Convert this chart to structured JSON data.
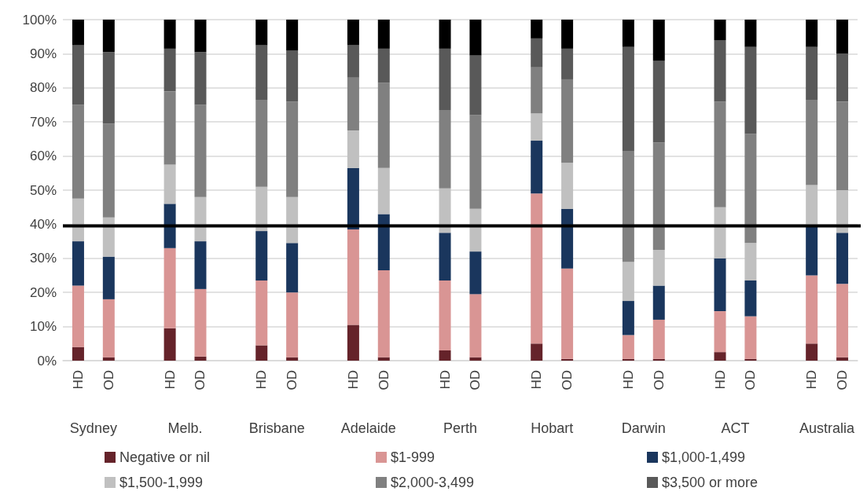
{
  "chart_data": {
    "type": "bar",
    "stacked": true,
    "categories": [
      "HD",
      "OD",
      null,
      "HD",
      "OD",
      null,
      "HD",
      "OD",
      null,
      "HD",
      "OD",
      null,
      "HD",
      "OD",
      null,
      "HD",
      "OD",
      null,
      "HD",
      "OD",
      null,
      "HD",
      "OD",
      null,
      "HD",
      "OD"
    ],
    "annotations": [
      "Sydney",
      "Melb.",
      "Brisbane",
      "Adelaide",
      "Perth",
      "Hobart",
      "Darwin",
      "ACT",
      "Australia"
    ],
    "series": [
      {
        "name": "Negative or nil",
        "color": "#65232a",
        "values": [
          4,
          1,
          null,
          9.5,
          1.2,
          null,
          4.5,
          1,
          null,
          10.5,
          1,
          null,
          3,
          1,
          null,
          5,
          0.5,
          null,
          0.5,
          0.5,
          null,
          2.5,
          0.5,
          null,
          5,
          1
        ]
      },
      {
        "name": "$1-999",
        "color": "#d99594",
        "values": [
          18,
          17,
          null,
          23.5,
          19.8,
          null,
          19,
          19,
          null,
          28,
          25.5,
          null,
          20.5,
          18.5,
          null,
          44,
          26.5,
          null,
          7,
          11.5,
          null,
          12,
          12.5,
          null,
          20,
          21.5
        ]
      },
      {
        "name": "$1,000-1,499",
        "color": "#1a365d",
        "values": [
          13,
          12.5,
          null,
          13,
          14,
          null,
          14.5,
          14.5,
          null,
          18,
          16.5,
          null,
          14,
          12.5,
          null,
          15.5,
          17.5,
          null,
          10,
          10,
          null,
          15.5,
          10.5,
          null,
          14.5,
          15
        ]
      },
      {
        "name": "$1,500-1,999",
        "color": "#c0c0c0",
        "values": [
          12.5,
          11.5,
          null,
          11.5,
          13,
          null,
          13,
          13.5,
          null,
          11,
          13.5,
          null,
          13,
          12.5,
          null,
          8,
          13.5,
          null,
          11.5,
          10.5,
          null,
          15,
          11,
          null,
          12,
          12.5
        ]
      },
      {
        "name": "$2,000-3,499",
        "color": "#808080",
        "values": [
          27.5,
          27.5,
          null,
          21.5,
          27,
          null,
          25.5,
          28,
          null,
          15.5,
          25,
          null,
          23,
          27.5,
          null,
          13.5,
          24.5,
          null,
          32.5,
          31.5,
          null,
          31,
          32,
          null,
          25,
          26
        ]
      },
      {
        "name": "$3,500 or more",
        "color": "#595959",
        "values": [
          17.5,
          21,
          null,
          12.5,
          15.5,
          null,
          16,
          15,
          null,
          9.5,
          10,
          null,
          18,
          17.5,
          null,
          8.5,
          9,
          null,
          30.5,
          24,
          null,
          18,
          25.5,
          null,
          15.5,
          14
        ]
      },
      {
        "color": "#000000",
        "values": [
          7.5,
          9.5,
          null,
          8.5,
          9.5,
          null,
          7.5,
          9,
          null,
          7.5,
          8.5,
          null,
          8.5,
          10.5,
          null,
          5.5,
          8.5,
          null,
          8,
          12,
          null,
          6,
          8,
          null,
          8,
          10
        ]
      }
    ],
    "ylim": [
      0,
      100
    ],
    "yticks": [
      {
        "value": 0,
        "label": "0%"
      },
      {
        "value": 10,
        "label": "10%"
      },
      {
        "value": 20,
        "label": "20%"
      },
      {
        "value": 30,
        "label": "30%"
      },
      {
        "value": 40,
        "label": "40%"
      },
      {
        "value": 50,
        "label": "50%"
      },
      {
        "value": 60,
        "label": "60%"
      },
      {
        "value": 70,
        "label": "70%"
      },
      {
        "value": 80,
        "label": "80%"
      },
      {
        "value": 90,
        "label": "90%"
      },
      {
        "value": 100,
        "label": "100%"
      }
    ],
    "ref_lines": [
      {
        "axis": "y",
        "value": 39.5,
        "color": "#000000"
      }
    ],
    "grid": "y",
    "legend": "bottom"
  }
}
